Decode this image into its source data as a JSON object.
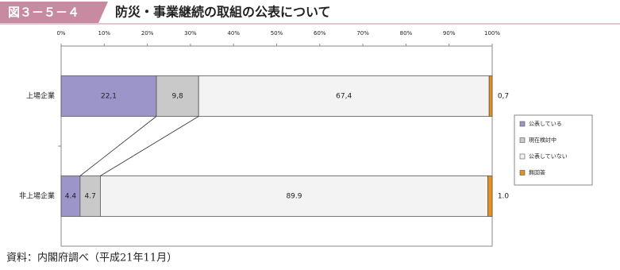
{
  "header": {
    "figure_number": "図３－５－４",
    "title": "防災・事業継続の取組の公表について"
  },
  "chart_data": {
    "type": "stacked-bar-horizontal",
    "categories": [
      "上場企業",
      "非上場企業"
    ],
    "series": [
      {
        "name": "公表している",
        "color": "#9b95c9",
        "values": [
          22.1,
          4.4
        ],
        "value_labels": [
          "22,1",
          "4.4"
        ]
      },
      {
        "name": "現在検討中",
        "color": "#c9c9c9",
        "values": [
          9.8,
          4.7
        ],
        "value_labels": [
          "9,8",
          "4.7"
        ]
      },
      {
        "name": "公表していない",
        "color": "#f3f3f3",
        "values": [
          67.4,
          89.9
        ],
        "value_labels": [
          "67,4",
          "89.9"
        ]
      },
      {
        "name": "無回答",
        "color": "#e8901a",
        "values": [
          0.7,
          1.0
        ],
        "value_labels": [
          "0,7",
          "1.0"
        ]
      }
    ],
    "xlim": [
      0,
      100
    ],
    "xticks": [
      {
        "value": 0,
        "label": "0%"
      },
      {
        "value": 10,
        "label": "10%"
      },
      {
        "value": 20,
        "label": "20%"
      },
      {
        "value": 30,
        "label": "30%"
      },
      {
        "value": 40,
        "label": "40%"
      },
      {
        "value": 50,
        "label": "50%"
      },
      {
        "value": 60,
        "label": "60%"
      },
      {
        "value": 70,
        "label": "70%"
      },
      {
        "value": 80,
        "label": "80%"
      },
      {
        "value": 90,
        "label": "90%"
      },
      {
        "value": 100,
        "label": "100%"
      }
    ]
  },
  "source": "資料：内閣府調べ（平成21年11月）"
}
